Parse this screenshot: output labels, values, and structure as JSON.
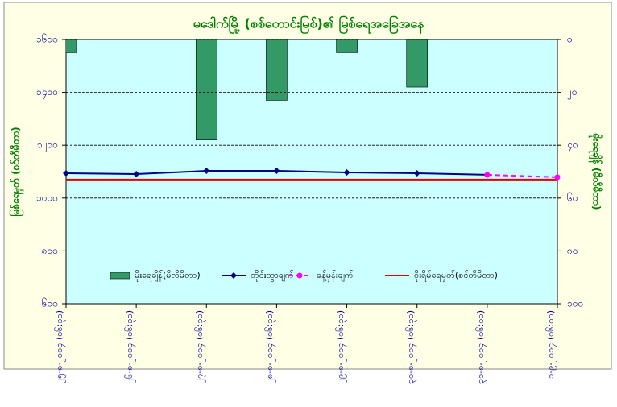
{
  "chart_data": {
    "type": "combo",
    "title": "မဒေါက်မြို့ (စစ်တောင်းမြစ်)၏ မြစ်ရေအခြေအနေ",
    "y_label": "မြစ်ရေမှတ် (စင်တီမီတာ)",
    "y2_label": "မိုးရေချိန် (မီလီမီတာ)",
    "categories": [
      "၂၅-၈-၂၀၁၄ (၀၆:၃၀)",
      "၂၆-၈-၂၀၁၄ (၀၆:၃၀)",
      "၂၇-၈-၂၀၁၄ (၀၆:၃၀)",
      "၂၈-၈-၂၀၁၄ (၀၆:၃၀)",
      "၂၉-၈-၂၀၁၄ (၀၆:၃၀)",
      "၃၀-၈-၂၀၁၄ (၀၆:၃၀)",
      "၃၁-၈-၂၀၁၄ (၀၆:၀၀)",
      "၁-၉-၂၀၁၄ (၀၆:၀၀)"
    ],
    "series": [
      {
        "name": "မိုးရေချိန်(မီလီမီတာ)",
        "type": "bar",
        "axis": "y2",
        "color": "#339966",
        "values": [
          5,
          0,
          38,
          23,
          5,
          18,
          0,
          0
        ]
      },
      {
        "name": "တိုင်းထွာချက်",
        "type": "line",
        "color": "#000080",
        "marker": "diamond",
        "dash": false,
        "values": [
          1094,
          1091,
          1103,
          1103,
          1097,
          1094,
          1088,
          null
        ]
      },
      {
        "name": "ခန့်မှန်းချက်",
        "type": "line",
        "color": "#ff00ff",
        "marker": "circle",
        "dash": true,
        "values": [
          null,
          null,
          null,
          null,
          null,
          null,
          1088,
          1079
        ]
      },
      {
        "name": "စိုးရိမ်ရေမှတ်(စင်တီမီတာ)",
        "type": "line",
        "color": "#e00000",
        "marker": null,
        "dash": false,
        "values": [
          1070,
          1070,
          1070,
          1070,
          1070,
          1070,
          1070,
          1070
        ]
      }
    ],
    "ylim": [
      600,
      1600
    ],
    "yticks": [
      {
        "value": 600,
        "label": "၆၀၀"
      },
      {
        "value": 800,
        "label": "၈၀၀"
      },
      {
        "value": 1000,
        "label": "၁၀၀၀"
      },
      {
        "value": 1200,
        "label": "၁၂၀၀"
      },
      {
        "value": 1400,
        "label": "၁၄၀၀"
      },
      {
        "value": 1600,
        "label": "၁၆၀၀"
      }
    ],
    "y2lim": [
      100,
      0
    ],
    "y2ticks": [
      {
        "value": 0,
        "label": "၀"
      },
      {
        "value": 20,
        "label": "၂၀"
      },
      {
        "value": 40,
        "label": "၄၀"
      },
      {
        "value": 60,
        "label": "၆၀"
      },
      {
        "value": 80,
        "label": "၈၀"
      },
      {
        "value": 100,
        "label": "၁၀၀"
      }
    ],
    "grid": true
  }
}
